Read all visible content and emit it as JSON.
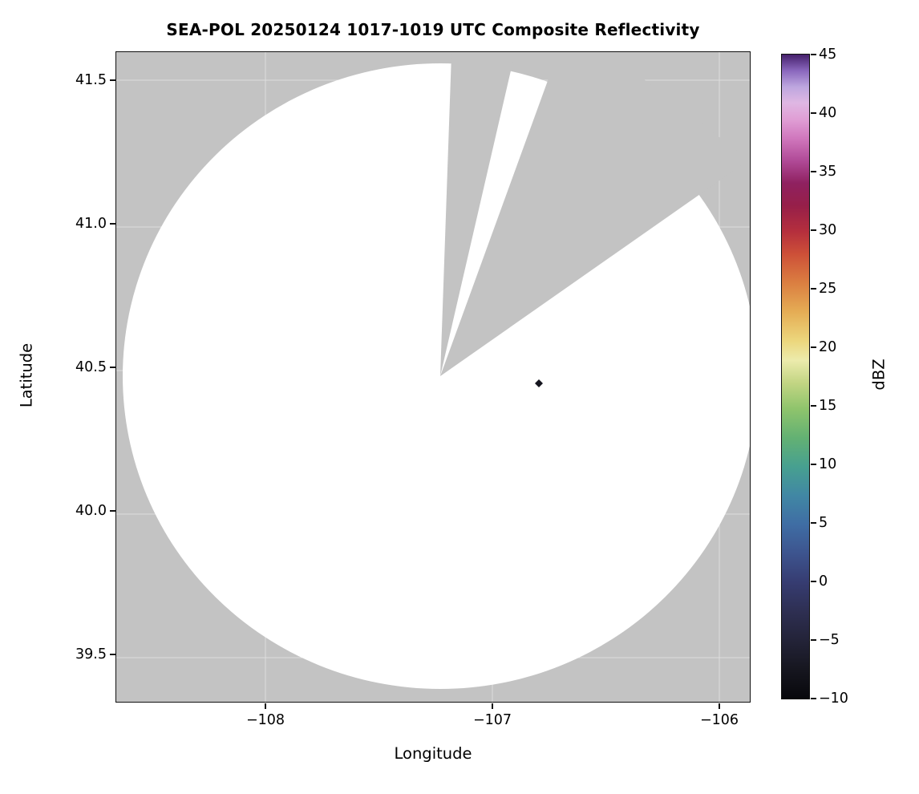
{
  "chart_data": {
    "type": "heatmap",
    "title": "SEA-POL 20250124 1017-1019 UTC Composite Reflectivity",
    "xlabel": "Longitude",
    "ylabel": "Latitude",
    "xlim": [
      -108.66,
      -105.87
    ],
    "ylim": [
      39.35,
      41.62
    ],
    "grid": true,
    "xticks": {
      "values": [
        -108,
        -107,
        -106
      ],
      "labels": [
        "−108",
        "−107",
        "−106"
      ]
    },
    "yticks": {
      "values": [
        41.5,
        41.0,
        40.5,
        40.0,
        39.5
      ],
      "labels": [
        "41.5",
        "41.0",
        "40.5",
        "40.0",
        "39.5"
      ]
    },
    "masked_color": "#c3c3c3",
    "no_echo_color": "#ffffff",
    "radar_coverage": {
      "center_lon": -107.23,
      "center_lat": 40.47,
      "radius_deg_lat": 1.09,
      "radius_deg_lon": 1.4,
      "blocked_sectors_azimuth_deg": [
        [
          2,
          13
        ],
        [
          20,
          55
        ]
      ]
    },
    "echoes": [
      {
        "lon": -106.79,
        "lat": 40.45,
        "approx_dbz": -9,
        "color": "#15151f"
      }
    ],
    "colorbar": {
      "label": "dBZ",
      "min": -10,
      "max": 45,
      "tick_values": [
        45,
        40,
        35,
        30,
        25,
        20,
        15,
        10,
        5,
        0,
        -5,
        -10
      ],
      "tick_labels": [
        "45",
        "40",
        "35",
        "30",
        "25",
        "20",
        "15",
        "10",
        "5",
        "0",
        "−5",
        "−10"
      ],
      "colormap_stops": [
        {
          "offset": 0.0,
          "color": "#08080c"
        },
        {
          "offset": 0.045,
          "color": "#16161f"
        },
        {
          "offset": 0.09,
          "color": "#232338"
        },
        {
          "offset": 0.135,
          "color": "#2e2f52"
        },
        {
          "offset": 0.18,
          "color": "#363c71"
        },
        {
          "offset": 0.225,
          "color": "#3d548e"
        },
        {
          "offset": 0.27,
          "color": "#3f6da4"
        },
        {
          "offset": 0.315,
          "color": "#4187a4"
        },
        {
          "offset": 0.36,
          "color": "#47a090"
        },
        {
          "offset": 0.405,
          "color": "#63b173"
        },
        {
          "offset": 0.45,
          "color": "#8fc46c"
        },
        {
          "offset": 0.49,
          "color": "#c2d583"
        },
        {
          "offset": 0.525,
          "color": "#ecebac"
        },
        {
          "offset": 0.555,
          "color": "#ecd77d"
        },
        {
          "offset": 0.6,
          "color": "#e5ad55"
        },
        {
          "offset": 0.645,
          "color": "#db7f41"
        },
        {
          "offset": 0.69,
          "color": "#cd5038"
        },
        {
          "offset": 0.725,
          "color": "#b52f3d"
        },
        {
          "offset": 0.765,
          "color": "#971f49"
        },
        {
          "offset": 0.8,
          "color": "#8f2160"
        },
        {
          "offset": 0.835,
          "color": "#b04a97"
        },
        {
          "offset": 0.87,
          "color": "#d077bd"
        },
        {
          "offset": 0.9,
          "color": "#e09fd5"
        },
        {
          "offset": 0.925,
          "color": "#dfb7e3"
        },
        {
          "offset": 0.95,
          "color": "#bda6df"
        },
        {
          "offset": 0.975,
          "color": "#8a67bd"
        },
        {
          "offset": 1.0,
          "color": "#45206b"
        }
      ]
    }
  }
}
